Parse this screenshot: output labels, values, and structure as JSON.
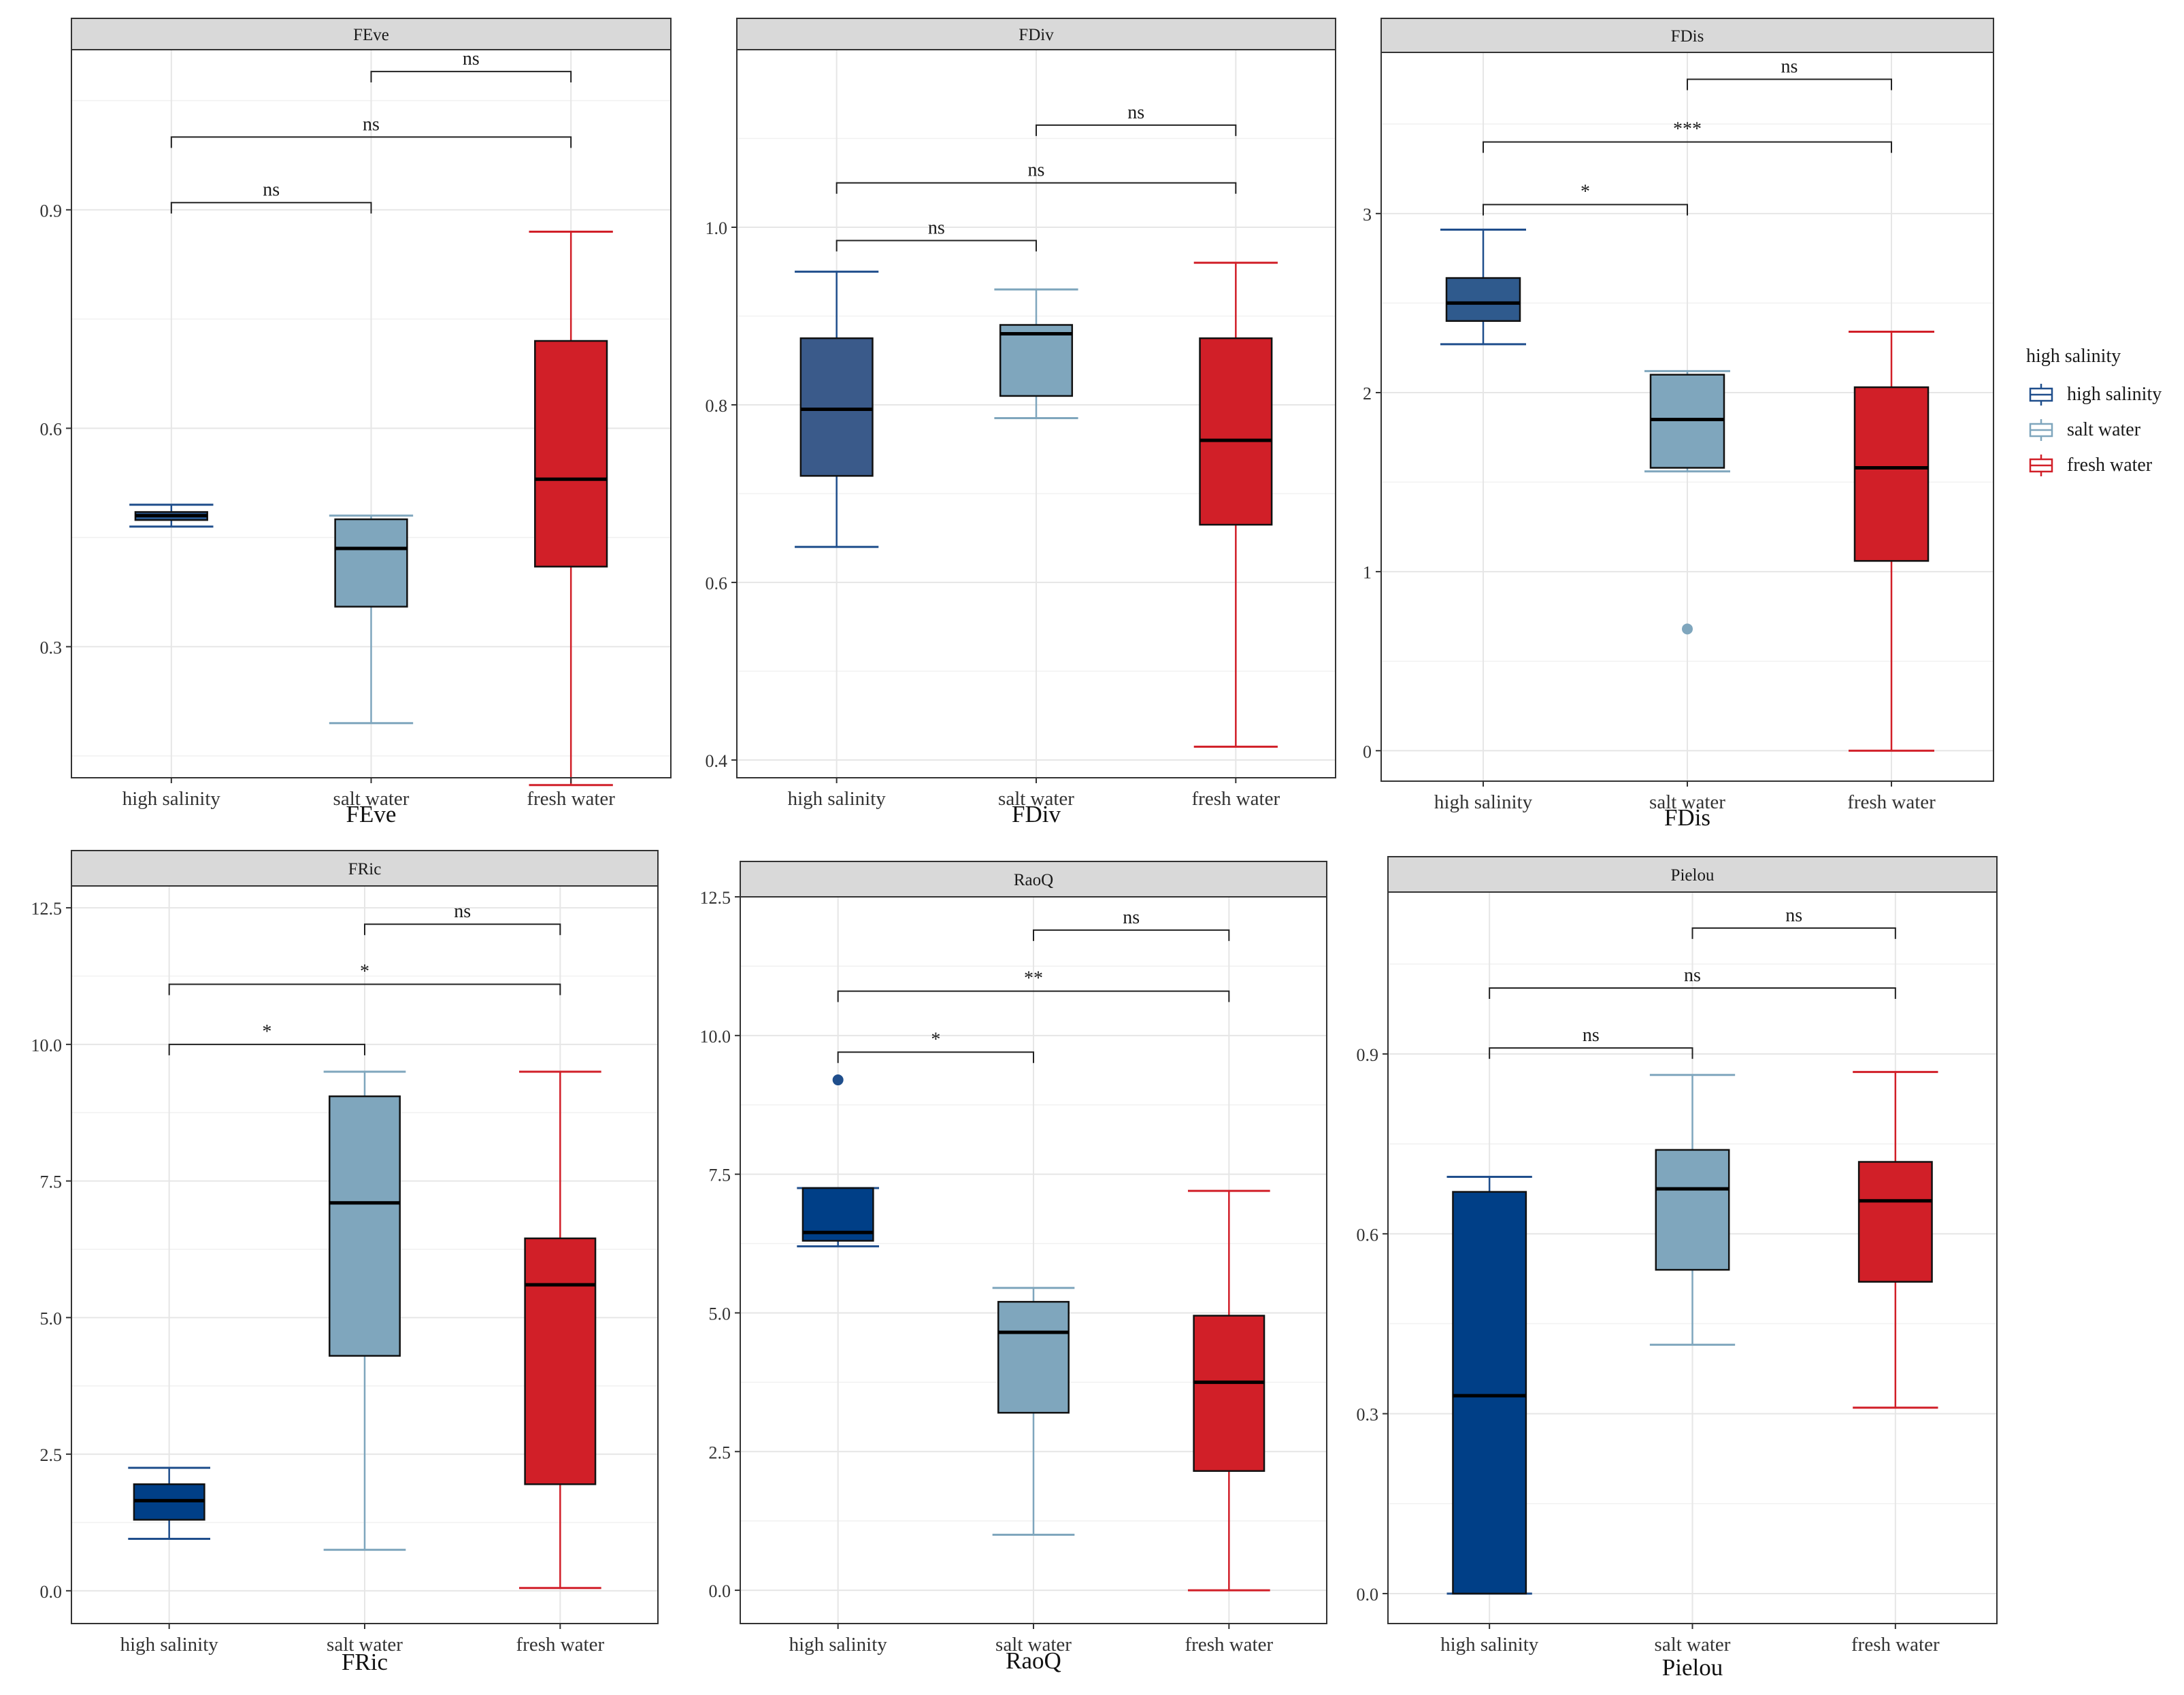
{
  "legend": {
    "title": "high salinity",
    "items": [
      {
        "label": "high salinity",
        "color": "#1F4E8C"
      },
      {
        "label": "salt water",
        "color": "#7FA6BD"
      },
      {
        "label": "fresh water",
        "color": "#D11F28"
      }
    ]
  },
  "chart_data": [
    {
      "type": "box",
      "title": "FEve",
      "xlabel": "FEve",
      "ylabel": "",
      "categories": [
        "high salinity",
        "salt water",
        "fresh water"
      ],
      "ylim": [
        0.12,
        1.12
      ],
      "yticks": [
        0.3,
        0.6,
        0.9
      ],
      "ytick_labels": [
        "0.3",
        "0.6",
        "0.9"
      ],
      "boxes": [
        {
          "category": "high salinity",
          "whisker_low": 0.465,
          "q1": 0.474,
          "median": 0.48,
          "q3": 0.485,
          "whisker_high": 0.495,
          "fill": "#2A5A94",
          "stroke": "#1F4E8C",
          "outliers": []
        },
        {
          "category": "salt water",
          "whisker_low": 0.195,
          "q1": 0.355,
          "median": 0.435,
          "q3": 0.475,
          "whisker_high": 0.48,
          "fill": "#7FA6BD",
          "stroke": "#7FA6BD",
          "outliers": []
        },
        {
          "category": "fresh water",
          "whisker_low": 0.11,
          "q1": 0.41,
          "median": 0.53,
          "q3": 0.72,
          "whisker_high": 0.87,
          "fill": "#D11F28",
          "stroke": "#D11F28",
          "outliers": []
        }
      ],
      "comparisons": [
        {
          "from": 0,
          "to": 1,
          "y": 0.91,
          "label": "ns"
        },
        {
          "from": 0,
          "to": 2,
          "y": 1.0,
          "label": "ns"
        },
        {
          "from": 1,
          "to": 2,
          "y": 1.09,
          "label": "ns"
        }
      ]
    },
    {
      "type": "box",
      "title": "FDiv",
      "xlabel": "FDiv",
      "ylabel": "",
      "categories": [
        "high salinity",
        "salt water",
        "fresh water"
      ],
      "ylim": [
        0.38,
        1.2
      ],
      "yticks": [
        0.4,
        0.6,
        0.8,
        1.0
      ],
      "ytick_labels": [
        "0.4",
        "0.6",
        "0.8",
        "1.0"
      ],
      "boxes": [
        {
          "category": "high salinity",
          "whisker_low": 0.64,
          "q1": 0.72,
          "median": 0.795,
          "q3": 0.875,
          "whisker_high": 0.95,
          "fill": "#3A5A8A",
          "stroke": "#1F4E8C",
          "outliers": []
        },
        {
          "category": "salt water",
          "whisker_low": 0.785,
          "q1": 0.81,
          "median": 0.88,
          "q3": 0.89,
          "whisker_high": 0.93,
          "fill": "#7FA6BD",
          "stroke": "#7FA6BD",
          "outliers": []
        },
        {
          "category": "fresh water",
          "whisker_low": 0.415,
          "q1": 0.665,
          "median": 0.76,
          "q3": 0.875,
          "whisker_high": 0.96,
          "fill": "#D11F28",
          "stroke": "#D11F28",
          "outliers": []
        }
      ],
      "comparisons": [
        {
          "from": 0,
          "to": 1,
          "y": 0.985,
          "label": "ns"
        },
        {
          "from": 0,
          "to": 2,
          "y": 1.05,
          "label": "ns"
        },
        {
          "from": 1,
          "to": 2,
          "y": 1.115,
          "label": "ns"
        }
      ]
    },
    {
      "type": "box",
      "title": "FDis",
      "xlabel": "FDis",
      "ylabel": "",
      "categories": [
        "high salinity",
        "salt water",
        "fresh water"
      ],
      "ylim": [
        -0.17,
        3.9
      ],
      "yticks": [
        0,
        1,
        2,
        3
      ],
      "ytick_labels": [
        "0",
        "1",
        "2",
        "3"
      ],
      "boxes": [
        {
          "category": "high salinity",
          "whisker_low": 2.27,
          "q1": 2.4,
          "median": 2.5,
          "q3": 2.64,
          "whisker_high": 2.91,
          "fill": "#2F5A8D",
          "stroke": "#1F4E8C",
          "outliers": []
        },
        {
          "category": "salt water",
          "whisker_low": 1.56,
          "q1": 1.58,
          "median": 1.85,
          "q3": 2.1,
          "whisker_high": 2.12,
          "fill": "#7FA6BD",
          "stroke": "#7FA6BD",
          "outliers": [
            0.68
          ]
        },
        {
          "category": "fresh water",
          "whisker_low": 0.0,
          "q1": 1.06,
          "median": 1.58,
          "q3": 2.03,
          "whisker_high": 2.34,
          "fill": "#D11F28",
          "stroke": "#D11F28",
          "outliers": []
        }
      ],
      "comparisons": [
        {
          "from": 0,
          "to": 1,
          "y": 3.05,
          "label": "*"
        },
        {
          "from": 0,
          "to": 2,
          "y": 3.4,
          "label": "***"
        },
        {
          "from": 1,
          "to": 2,
          "y": 3.75,
          "label": "ns"
        }
      ]
    },
    {
      "type": "box",
      "title": "FRic",
      "xlabel": "FRic",
      "ylabel": "",
      "categories": [
        "high salinity",
        "salt water",
        "fresh water"
      ],
      "ylim": [
        -0.6,
        12.9
      ],
      "yticks": [
        0,
        2.5,
        5,
        7.5,
        10,
        12.5
      ],
      "ytick_labels": [
        "0.0",
        "2.5",
        "5.0",
        "7.5",
        "10.0",
        "12.5"
      ],
      "boxes": [
        {
          "category": "high salinity",
          "whisker_low": 0.95,
          "q1": 1.3,
          "median": 1.65,
          "q3": 1.95,
          "whisker_high": 2.25,
          "fill": "#003F87",
          "stroke": "#1F4E8C",
          "outliers": []
        },
        {
          "category": "salt water",
          "whisker_low": 0.75,
          "q1": 4.3,
          "median": 7.1,
          "q3": 9.05,
          "whisker_high": 9.5,
          "fill": "#7FA6BD",
          "stroke": "#7FA6BD",
          "outliers": []
        },
        {
          "category": "fresh water",
          "whisker_low": 0.05,
          "q1": 1.95,
          "median": 5.6,
          "q3": 6.45,
          "whisker_high": 9.5,
          "fill": "#D11F28",
          "stroke": "#D11F28",
          "outliers": []
        }
      ],
      "comparisons": [
        {
          "from": 0,
          "to": 1,
          "y": 10.0,
          "label": "*"
        },
        {
          "from": 0,
          "to": 2,
          "y": 11.1,
          "label": "*"
        },
        {
          "from": 1,
          "to": 2,
          "y": 12.2,
          "label": "ns"
        }
      ]
    },
    {
      "type": "box",
      "title": "RaoQ",
      "xlabel": "RaoQ",
      "ylabel": "",
      "categories": [
        "high salinity",
        "salt water",
        "fresh water"
      ],
      "ylim": [
        -0.6,
        12.5
      ],
      "yticks": [
        0,
        2.5,
        5,
        7.5,
        10,
        12.5
      ],
      "ytick_labels": [
        "0.0",
        "2.5",
        "5.0",
        "7.5",
        "10.0",
        "12.5"
      ],
      "boxes": [
        {
          "category": "high salinity",
          "whisker_low": 6.2,
          "q1": 6.3,
          "median": 6.45,
          "q3": 7.25,
          "whisker_high": 7.25,
          "fill": "#003F87",
          "stroke": "#1F4E8C",
          "outliers": [
            9.2
          ]
        },
        {
          "category": "salt water",
          "whisker_low": 1.0,
          "q1": 3.2,
          "median": 4.65,
          "q3": 5.2,
          "whisker_high": 5.45,
          "fill": "#7FA6BD",
          "stroke": "#7FA6BD",
          "outliers": []
        },
        {
          "category": "fresh water",
          "whisker_low": 0.0,
          "q1": 2.15,
          "median": 3.75,
          "q3": 4.95,
          "whisker_high": 7.2,
          "fill": "#D11F28",
          "stroke": "#D11F28",
          "outliers": []
        }
      ],
      "comparisons": [
        {
          "from": 0,
          "to": 1,
          "y": 9.7,
          "label": "*"
        },
        {
          "from": 0,
          "to": 2,
          "y": 10.8,
          "label": "**"
        },
        {
          "from": 1,
          "to": 2,
          "y": 11.9,
          "label": "ns"
        }
      ]
    },
    {
      "type": "box",
      "title": "Pielou",
      "xlabel": "Pielou",
      "ylabel": "",
      "categories": [
        "high salinity",
        "salt water",
        "fresh water"
      ],
      "ylim": [
        -0.05,
        1.17
      ],
      "yticks": [
        0,
        0.3,
        0.6,
        0.9
      ],
      "ytick_labels": [
        "0.0",
        "0.3",
        "0.6",
        "0.9"
      ],
      "boxes": [
        {
          "category": "high salinity",
          "whisker_low": 0.0,
          "q1": 0.0,
          "median": 0.33,
          "q3": 0.67,
          "whisker_high": 0.695,
          "fill": "#003F87",
          "stroke": "#1F4E8C",
          "outliers": []
        },
        {
          "category": "salt water",
          "whisker_low": 0.415,
          "q1": 0.54,
          "median": 0.675,
          "q3": 0.74,
          "whisker_high": 0.865,
          "fill": "#7FA6BD",
          "stroke": "#7FA6BD",
          "outliers": []
        },
        {
          "category": "fresh water",
          "whisker_low": 0.31,
          "q1": 0.52,
          "median": 0.655,
          "q3": 0.72,
          "whisker_high": 0.87,
          "fill": "#D11F28",
          "stroke": "#D11F28",
          "outliers": []
        }
      ],
      "comparisons": [
        {
          "from": 0,
          "to": 1,
          "y": 0.91,
          "label": "ns"
        },
        {
          "from": 0,
          "to": 2,
          "y": 1.01,
          "label": "ns"
        },
        {
          "from": 1,
          "to": 2,
          "y": 1.11,
          "label": "ns"
        }
      ]
    }
  ]
}
